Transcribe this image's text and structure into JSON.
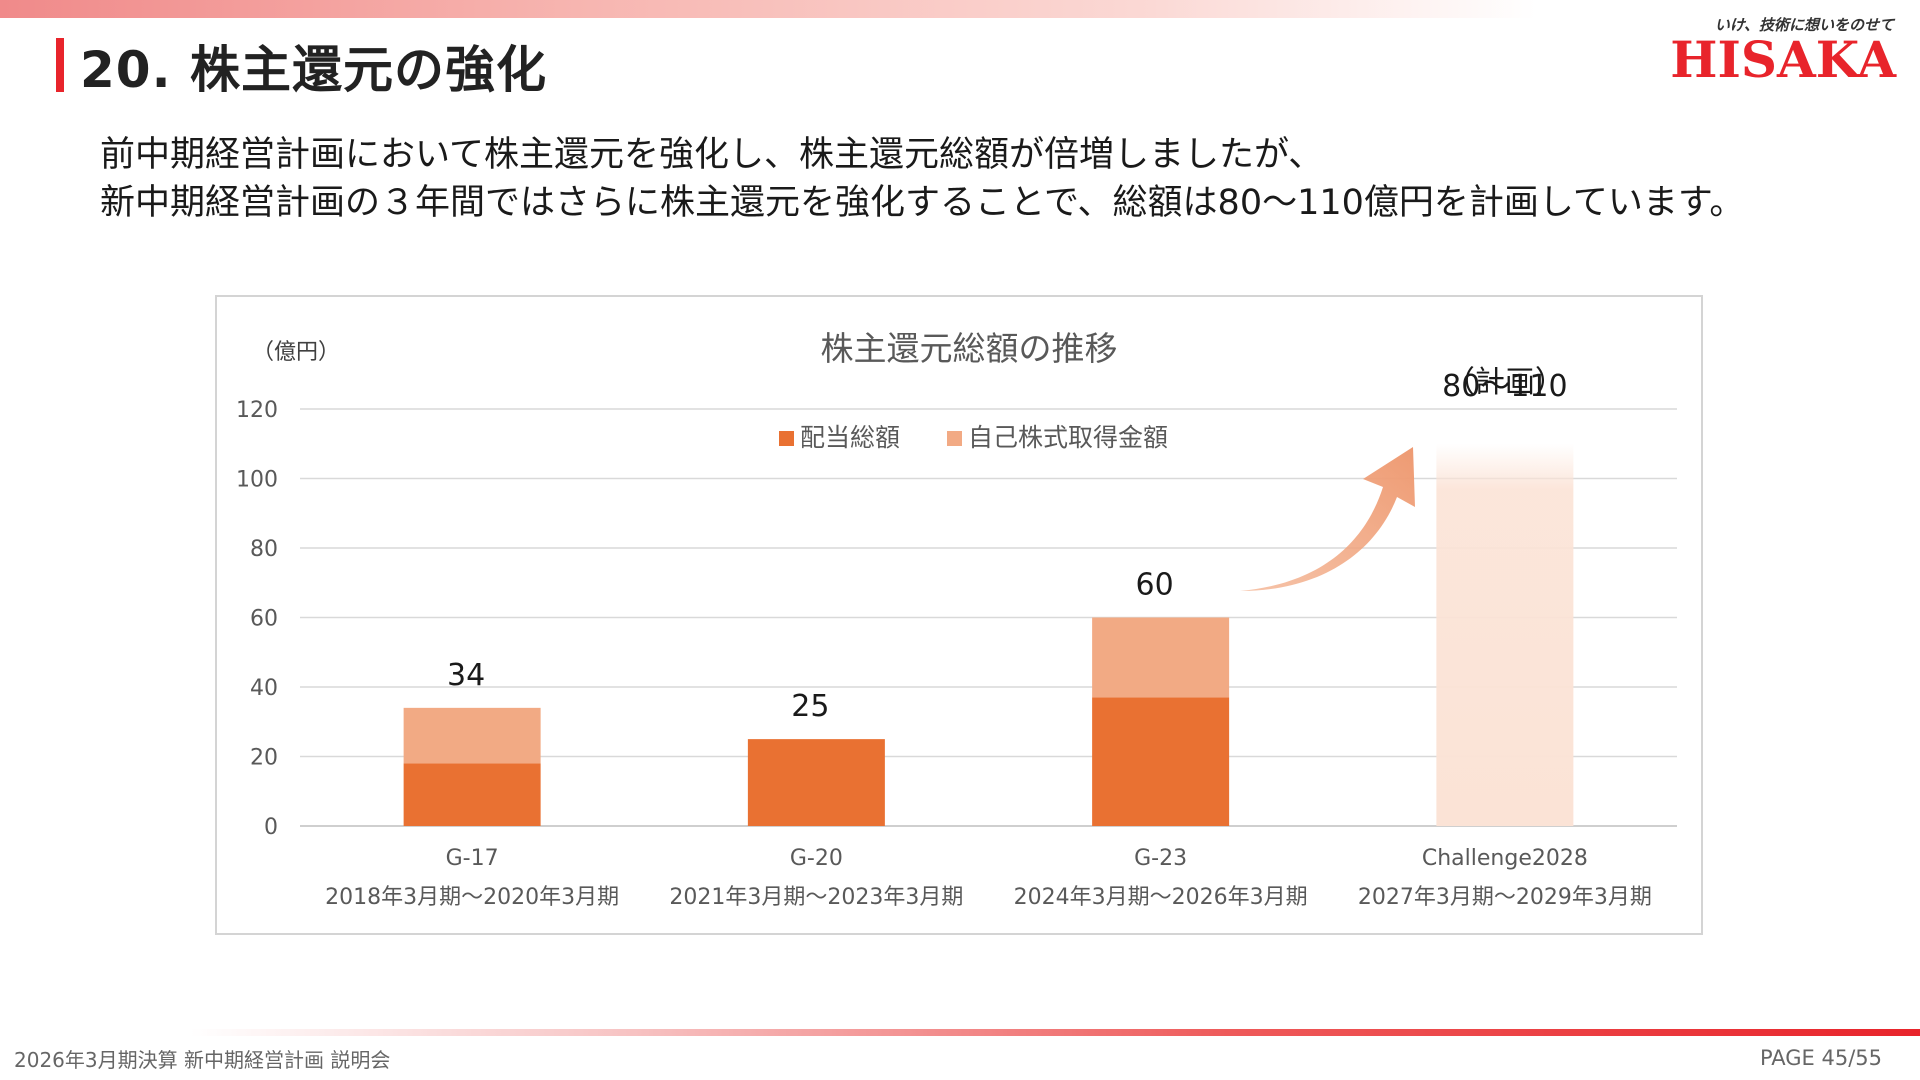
{
  "slide": {
    "title": "20. 株主還元の強化",
    "brand": {
      "tagline": "いけ、技術に想いをのせて",
      "logo": "HISAKA",
      "color": "#e8242b"
    },
    "lead": [
      "前中期経営計画において株主還元を強化し、株主還元総額が倍増しましたが、",
      "新中期経営計画の３年間ではさらに株主還元を強化することで、総額は80～110億円を計画しています。"
    ],
    "footer": {
      "left": "2026年3月期決算 新中期経営計画 説明会",
      "page": "PAGE 45/55"
    }
  },
  "chart_data": {
    "type": "bar",
    "stacked": true,
    "title": "株主還元総額の推移",
    "unit_label": "（億円）",
    "ylim": [
      0,
      120
    ],
    "yticks": [
      0,
      20,
      40,
      60,
      80,
      100,
      120
    ],
    "grid": true,
    "legend_position": "top-center",
    "categories": [
      "G-17",
      "G-20",
      "G-23",
      "Challenge2028"
    ],
    "category_periods": [
      "2018年3月期～2020年3月期",
      "2021年3月期～2023年3月期",
      "2024年3月期～2026年3月期",
      "2027年3月期～2029年3月期"
    ],
    "series": [
      {
        "name": "配当総額",
        "color": "#e97132",
        "values": [
          18,
          25,
          37,
          null
        ]
      },
      {
        "name": "自己株式取得金額",
        "color": "#f2aa84",
        "values": [
          16,
          0,
          23,
          null
        ]
      }
    ],
    "totals": [
      34,
      25,
      60,
      null
    ],
    "total_labels": [
      "34",
      "25",
      "60",
      "80～110"
    ],
    "plan": {
      "category": "Challenge2028",
      "range": [
        80,
        110
      ],
      "label": "（計画）",
      "color": "#fbe3d6"
    }
  }
}
